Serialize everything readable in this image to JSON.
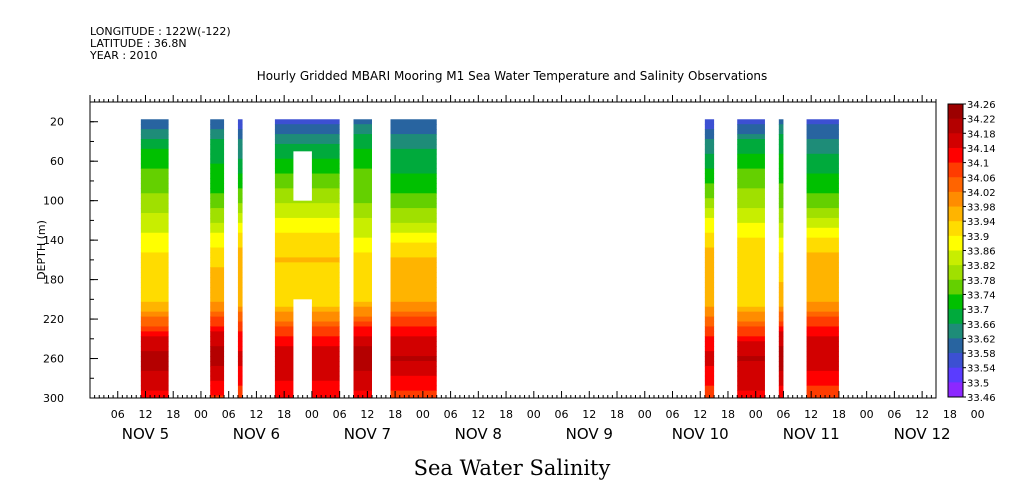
{
  "header": {
    "longitude": "LONGITUDE : 122W(-122)",
    "latitude": "LATITUDE : 36.8N",
    "year": "YEAR : 2010"
  },
  "chart_data": {
    "type": "heatmap",
    "title": "Hourly Gridded MBARI Mooring M1 Sea Water Temperature and Salinity Observations",
    "variable_label": "Sea Water Salinity",
    "ylabel": "DEPTH (m)",
    "y_direction": "depth increasing downward",
    "ylim": [
      300,
      0
    ],
    "y_ticks": [
      "20",
      "60",
      "100",
      "140",
      "180",
      "220",
      "260",
      "300"
    ],
    "x_unit": "hours since Nov 5 00:00",
    "xlim": [
      0,
      183
    ],
    "x_ticks": [
      "06",
      "12",
      "18",
      "00",
      "06",
      "12",
      "18",
      "00",
      "06",
      "12",
      "18",
      "00",
      "06",
      "12",
      "18",
      "00",
      "06",
      "12",
      "18",
      "00",
      "06",
      "12",
      "18",
      "00",
      "06",
      "12",
      "18",
      "00",
      "06",
      "12",
      "18",
      "00"
    ],
    "x_day_labels": [
      "NOV  5",
      "NOV  6",
      "NOV  7",
      "NOV  8",
      "NOV  9",
      "NOV 10",
      "NOV 11",
      "NOV 12"
    ],
    "colorbar": {
      "min": 33.46,
      "max": 34.26,
      "step": 0.04,
      "labels": [
        "34.26",
        "34.22",
        "34.18",
        "34.14",
        "34.1",
        "34.06",
        "34.02",
        "33.98",
        "33.94",
        "33.9",
        "33.86",
        "33.82",
        "33.78",
        "33.74",
        "33.7",
        "33.66",
        "33.62",
        "33.58",
        "33.54",
        "33.5",
        "33.46"
      ],
      "colors": [
        "#9c0000",
        "#b40000",
        "#d20000",
        "#ff0000",
        "#ff3c00",
        "#ff6400",
        "#ff8c00",
        "#ffb400",
        "#ffdc00",
        "#ffff00",
        "#c8ee00",
        "#a0e000",
        "#64d000",
        "#00c000",
        "#00aa3c",
        "#1e8c78",
        "#2864a0",
        "#3c50d2",
        "#5a3cff",
        "#8c28ff",
        "#cc00ff"
      ]
    },
    "observed_time_blocks_hours": [
      [
        11,
        17
      ],
      [
        26,
        29
      ],
      [
        32,
        33
      ],
      [
        40,
        54
      ],
      [
        57,
        61
      ],
      [
        65,
        75
      ],
      [
        133,
        135
      ],
      [
        140,
        146
      ],
      [
        149,
        150
      ],
      [
        155,
        162
      ],
      [
        183,
        185
      ]
    ],
    "missing_boxes": [
      {
        "x": [
          44,
          48
        ],
        "depth": [
          50,
          100
        ]
      },
      {
        "x": [
          44,
          48
        ],
        "depth": [
          200,
          300
        ]
      }
    ],
    "depth_levels_m": [
      20,
      40,
      60,
      80,
      100,
      120,
      140,
      160,
      180,
      200,
      220,
      240,
      260,
      280,
      300
    ],
    "typical_profile_salinity": [
      33.6,
      33.67,
      33.72,
      33.76,
      33.8,
      33.86,
      33.92,
      33.96,
      33.97,
      33.96,
      34.06,
      34.16,
      34.2,
      34.16,
      34.12
    ]
  }
}
